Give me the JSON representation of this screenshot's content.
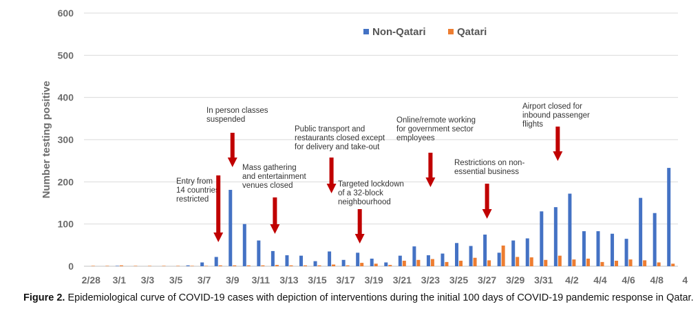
{
  "caption": {
    "label": "Figure 2.",
    "text": " Epidemiological curve of COVID-19 cases with depiction of interventions during the initial 100 days of COVID-19 pandemic response in Qatar."
  },
  "chart_data": {
    "type": "bar",
    "ylabel": "Number testing positive",
    "ylim": [
      0,
      600
    ],
    "yticks": [
      0,
      100,
      200,
      300,
      400,
      500,
      600
    ],
    "legend_position": "top-right",
    "colors": {
      "Non-Qatari": "#4472c4",
      "Qatari": "#ed7d31",
      "arrow": "#c00000"
    },
    "categories": [
      "2/28",
      "2/29",
      "3/1",
      "3/2",
      "3/3",
      "3/4",
      "3/5",
      "3/6",
      "3/7",
      "3/8",
      "3/9",
      "3/10",
      "3/11",
      "3/12",
      "3/13",
      "3/14",
      "3/15",
      "3/16",
      "3/17",
      "3/18",
      "3/19",
      "3/20",
      "3/21",
      "3/22",
      "3/23",
      "3/24",
      "3/25",
      "3/26",
      "3/27",
      "3/28",
      "3/29",
      "3/30",
      "3/31",
      "4/1",
      "4/2",
      "4/3",
      "4/4",
      "4/5",
      "4/6",
      "4/7",
      "4/8",
      "4/9"
    ],
    "tick_labels": [
      "2/28",
      "3/1",
      "3/3",
      "3/5",
      "3/7",
      "3/9",
      "3/11",
      "3/13",
      "3/15",
      "3/17",
      "3/19",
      "3/21",
      "3/23",
      "3/25",
      "3/27",
      "3/29",
      "3/31",
      "4/2",
      "4/4",
      "4/6",
      "4/8",
      "4"
    ],
    "series": [
      {
        "name": "Non-Qatari",
        "values": [
          0,
          0,
          1,
          0,
          0,
          0,
          0,
          2,
          9,
          22,
          181,
          100,
          61,
          36,
          26,
          25,
          12,
          35,
          15,
          32,
          18,
          9,
          25,
          47,
          26,
          30,
          55,
          48,
          75,
          32,
          61,
          66,
          130,
          140,
          172,
          83,
          83,
          77,
          65,
          162,
          126,
          233
        ]
      },
      {
        "name": "Qatari",
        "values": [
          1,
          1,
          2,
          1,
          1,
          1,
          1,
          1,
          1,
          2,
          2,
          2,
          2,
          3,
          2,
          2,
          2,
          4,
          2,
          8,
          6,
          3,
          13,
          15,
          17,
          10,
          13,
          20,
          14,
          49,
          22,
          21,
          15,
          25,
          16,
          18,
          10,
          13,
          16,
          14,
          9,
          6
        ]
      }
    ],
    "annotations": [
      {
        "lines": [
          "Entry from",
          "14 countries",
          "restricted"
        ],
        "arrow_at": "3/8"
      },
      {
        "lines": [
          "In person classes",
          "suspended"
        ],
        "arrow_at": "3/9"
      },
      {
        "lines": [
          "Mass gathering",
          "and entertainment",
          "venues closed"
        ],
        "arrow_at": "3/12"
      },
      {
        "lines": [
          "Public transport and",
          "restaurants closed except",
          "for delivery and take-out"
        ],
        "arrow_at": "3/16"
      },
      {
        "lines": [
          "Targeted lockdown",
          "of a 32-block",
          "neighbourhood"
        ],
        "arrow_at": "3/18"
      },
      {
        "lines": [
          "Online/remote working",
          "for government sector",
          "employees"
        ],
        "arrow_at": "3/23"
      },
      {
        "lines": [
          "Restrictions on non-",
          "essential business"
        ],
        "arrow_at": "3/27"
      },
      {
        "lines": [
          "Airport closed for",
          "inbound passenger",
          "flights"
        ],
        "arrow_at": "4/1"
      }
    ]
  }
}
